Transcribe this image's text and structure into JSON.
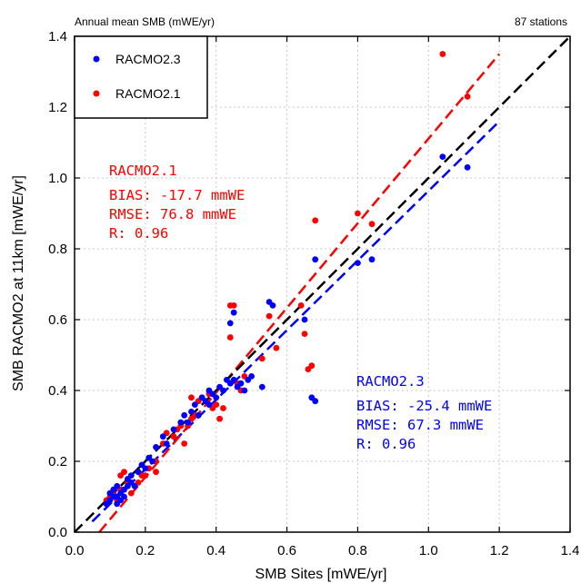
{
  "chart_data": {
    "type": "scatter",
    "title": "Annual mean SMB (mWE/yr)",
    "stations_label": "87 stations",
    "xlabel": "SMB Sites [mWE/yr]",
    "ylabel": "SMB RACMO2 at 11km [mWE/yr]",
    "xlim": [
      0.0,
      1.4
    ],
    "ylim": [
      0.0,
      1.4
    ],
    "xticks": [
      "0.0",
      "0.2",
      "0.4",
      "0.6",
      "0.8",
      "1.0",
      "1.2",
      "1.4"
    ],
    "yticks": [
      "0.0",
      "0.2",
      "0.4",
      "0.6",
      "0.8",
      "1.0",
      "1.2",
      "1.4"
    ],
    "grid": true,
    "legend": {
      "placement": "top-left",
      "entries": [
        {
          "label": "RACMO2.3",
          "color": "#0000ff"
        },
        {
          "label": "RACMO2.1",
          "color": "#ff0000"
        }
      ]
    },
    "one_to_one_line": {
      "x": [
        0.0,
        1.4
      ],
      "y": [
        0.0,
        1.4
      ],
      "color": "#000000",
      "style": "dashed"
    },
    "stats": {
      "racmo21": {
        "name": "RACMO2.1",
        "color": "#ff0000",
        "lines": [
          "RACMO2.1",
          "BIAS: -17.7 mmWE",
          "RMSE: 76.8 mmWE",
          "R: 0.96"
        ]
      },
      "racmo23": {
        "name": "RACMO2.3",
        "color": "#0000ff",
        "lines": [
          "RACMO2.3",
          "BIAS: -25.4 mmWE",
          "RMSE: 67.3 mmWE",
          "R: 0.96"
        ]
      }
    },
    "series": [
      {
        "name": "RACMO2.3",
        "color": "#0000ff",
        "fit_line": {
          "x": [
            0.05,
            1.2
          ],
          "y": [
            0.03,
            1.16
          ]
        },
        "points": [
          [
            0.09,
            0.08
          ],
          [
            0.1,
            0.09
          ],
          [
            0.1,
            0.11
          ],
          [
            0.11,
            0.1
          ],
          [
            0.11,
            0.12
          ],
          [
            0.12,
            0.08
          ],
          [
            0.12,
            0.1
          ],
          [
            0.12,
            0.13
          ],
          [
            0.13,
            0.11
          ],
          [
            0.13,
            0.09
          ],
          [
            0.14,
            0.12
          ],
          [
            0.14,
            0.1
          ],
          [
            0.15,
            0.13
          ],
          [
            0.15,
            0.15
          ],
          [
            0.16,
            0.14
          ],
          [
            0.16,
            0.16
          ],
          [
            0.17,
            0.13
          ],
          [
            0.18,
            0.17
          ],
          [
            0.19,
            0.19
          ],
          [
            0.2,
            0.18
          ],
          [
            0.21,
            0.21
          ],
          [
            0.22,
            0.2
          ],
          [
            0.23,
            0.24
          ],
          [
            0.25,
            0.27
          ],
          [
            0.26,
            0.25
          ],
          [
            0.28,
            0.29
          ],
          [
            0.3,
            0.31
          ],
          [
            0.31,
            0.33
          ],
          [
            0.32,
            0.31
          ],
          [
            0.33,
            0.34
          ],
          [
            0.34,
            0.36
          ],
          [
            0.35,
            0.33
          ],
          [
            0.36,
            0.38
          ],
          [
            0.37,
            0.37
          ],
          [
            0.38,
            0.36
          ],
          [
            0.38,
            0.4
          ],
          [
            0.39,
            0.39
          ],
          [
            0.4,
            0.38
          ],
          [
            0.41,
            0.41
          ],
          [
            0.42,
            0.4
          ],
          [
            0.43,
            0.43
          ],
          [
            0.44,
            0.42
          ],
          [
            0.45,
            0.43
          ],
          [
            0.46,
            0.41
          ],
          [
            0.47,
            0.42
          ],
          [
            0.48,
            0.4
          ],
          [
            0.49,
            0.43
          ],
          [
            0.5,
            0.44
          ],
          [
            0.44,
            0.59
          ],
          [
            0.45,
            0.62
          ],
          [
            0.53,
            0.41
          ],
          [
            0.55,
            0.65
          ],
          [
            0.56,
            0.64
          ],
          [
            0.65,
            0.6
          ],
          [
            0.67,
            0.38
          ],
          [
            0.68,
            0.37
          ],
          [
            0.68,
            0.77
          ],
          [
            0.8,
            0.76
          ],
          [
            0.84,
            0.77
          ],
          [
            1.04,
            1.06
          ],
          [
            1.11,
            1.03
          ]
        ]
      },
      {
        "name": "RACMO2.1",
        "color": "#ff0000",
        "fit_line": {
          "x": [
            0.07,
            1.2
          ],
          "y": [
            0.0,
            1.35
          ]
        },
        "points": [
          [
            0.09,
            0.09
          ],
          [
            0.1,
            0.1
          ],
          [
            0.11,
            0.11
          ],
          [
            0.12,
            0.09
          ],
          [
            0.13,
            0.12
          ],
          [
            0.13,
            0.16
          ],
          [
            0.14,
            0.17
          ],
          [
            0.15,
            0.14
          ],
          [
            0.16,
            0.11
          ],
          [
            0.17,
            0.13
          ],
          [
            0.18,
            0.14
          ],
          [
            0.19,
            0.16
          ],
          [
            0.2,
            0.16
          ],
          [
            0.21,
            0.18
          ],
          [
            0.23,
            0.2
          ],
          [
            0.23,
            0.17
          ],
          [
            0.25,
            0.25
          ],
          [
            0.26,
            0.28
          ],
          [
            0.28,
            0.27
          ],
          [
            0.29,
            0.29
          ],
          [
            0.3,
            0.3
          ],
          [
            0.31,
            0.25
          ],
          [
            0.32,
            0.3
          ],
          [
            0.33,
            0.32
          ],
          [
            0.33,
            0.38
          ],
          [
            0.34,
            0.33
          ],
          [
            0.35,
            0.37
          ],
          [
            0.36,
            0.38
          ],
          [
            0.38,
            0.39
          ],
          [
            0.39,
            0.35
          ],
          [
            0.4,
            0.36
          ],
          [
            0.41,
            0.32
          ],
          [
            0.42,
            0.35
          ],
          [
            0.44,
            0.55
          ],
          [
            0.44,
            0.64
          ],
          [
            0.45,
            0.64
          ],
          [
            0.46,
            0.42
          ],
          [
            0.47,
            0.4
          ],
          [
            0.48,
            0.44
          ],
          [
            0.53,
            0.49
          ],
          [
            0.55,
            0.61
          ],
          [
            0.57,
            0.52
          ],
          [
            0.64,
            0.64
          ],
          [
            0.65,
            0.56
          ],
          [
            0.66,
            0.46
          ],
          [
            0.67,
            0.47
          ],
          [
            0.68,
            0.88
          ],
          [
            0.8,
            0.9
          ],
          [
            0.84,
            0.87
          ],
          [
            1.04,
            1.35
          ],
          [
            1.11,
            1.23
          ]
        ]
      }
    ]
  }
}
